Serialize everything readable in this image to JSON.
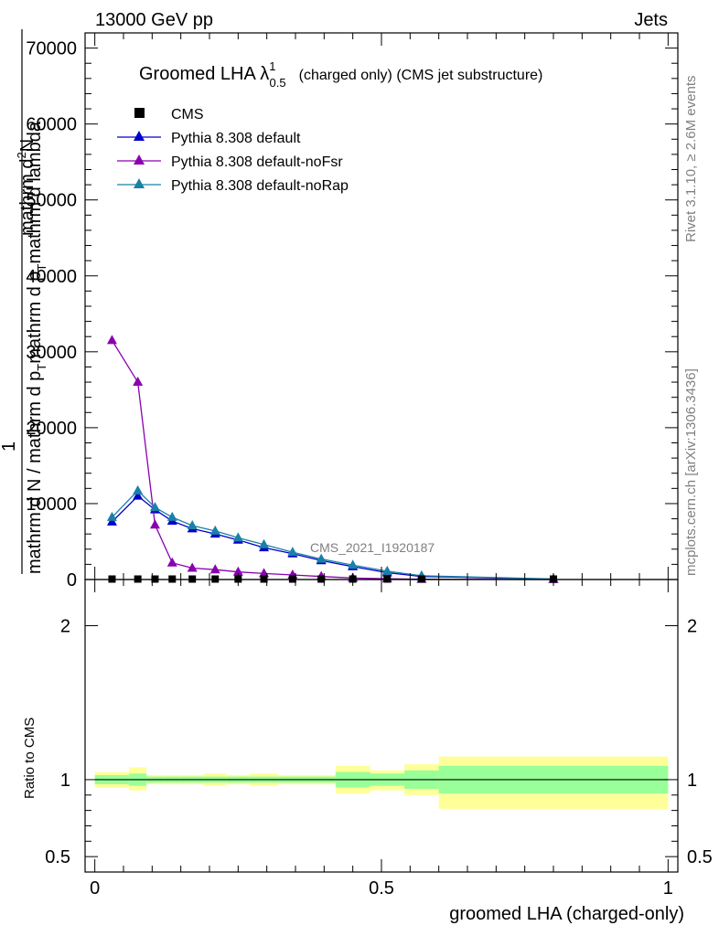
{
  "header": {
    "left": "13000 GeV pp",
    "right": "Jets"
  },
  "side_labels": {
    "rivet": "Rivet 3.1.10, ≥ 2.6M events",
    "mcplots": "mcplots.cern.ch [arXiv:1306.3436]"
  },
  "watermark": "CMS_2021_I1920187",
  "colors": {
    "cms": "#000000",
    "default": "#0000cc",
    "noFsr": "#8a00b0",
    "noRap": "#1a80a8",
    "band_inner": "#99ff99",
    "band_outer": "#ffff99"
  },
  "chart_data": [
    {
      "type": "line",
      "title": "Groomed LHA λ",
      "title_sup": "1",
      "title_sub": "0.5",
      "title_suffix": "(charged only) (CMS jet substructure)",
      "ylabel_numerator": "1        mathrm d",
      "ylabel_numerator_sup": "2",
      "ylabel_numerator_rest": "N",
      "ylabel_line1": "mathrm d N / mathrm d p",
      "ylabel_line1_sub": "T",
      "ylabel_line1_rest": "mathrm d p",
      "ylabel_line1_sub2": "T",
      "ylabel_line1_rest2": "mathrm d lambda",
      "xlim": [
        0,
        1
      ],
      "ylim": [
        0,
        72000
      ],
      "yticks": [
        0,
        10000,
        20000,
        30000,
        40000,
        50000,
        60000,
        70000
      ],
      "ytick_labels": [
        "0",
        "10000",
        "20000",
        "30000",
        "40000",
        "50000",
        "60000",
        "70000"
      ],
      "legend_position": "top-left",
      "series": [
        {
          "name": "CMS",
          "marker": "square",
          "x": [
            0.03,
            0.075,
            0.105,
            0.135,
            0.17,
            0.21,
            0.25,
            0.295,
            0.345,
            0.395,
            0.45,
            0.51,
            0.57,
            0.8
          ],
          "y": [
            60,
            60,
            60,
            60,
            60,
            60,
            60,
            60,
            60,
            60,
            60,
            60,
            60,
            60
          ]
        },
        {
          "name": "Pythia 8.308 default",
          "marker": "triangle",
          "x": [
            0.03,
            0.075,
            0.105,
            0.135,
            0.17,
            0.21,
            0.25,
            0.295,
            0.345,
            0.395,
            0.45,
            0.51,
            0.57,
            0.8
          ],
          "y": [
            7600,
            11000,
            9200,
            7700,
            6700,
            6000,
            5200,
            4200,
            3400,
            2500,
            1700,
            900,
            400,
            60
          ]
        },
        {
          "name": "Pythia 8.308 default-noFsr",
          "marker": "triangle",
          "x": [
            0.03,
            0.075,
            0.105,
            0.135,
            0.17,
            0.21,
            0.25,
            0.295,
            0.345,
            0.395,
            0.45,
            0.51,
            0.57,
            0.8
          ],
          "y": [
            31500,
            26000,
            7200,
            2200,
            1500,
            1300,
            1000,
            800,
            600,
            400,
            200,
            100,
            40,
            10
          ]
        },
        {
          "name": "Pythia 8.308 default-noRap",
          "marker": "triangle",
          "x": [
            0.03,
            0.075,
            0.105,
            0.135,
            0.17,
            0.21,
            0.25,
            0.295,
            0.345,
            0.395,
            0.45,
            0.51,
            0.57,
            0.8
          ],
          "y": [
            8200,
            11700,
            9500,
            8200,
            7100,
            6400,
            5500,
            4600,
            3600,
            2700,
            1900,
            1100,
            500,
            70
          ]
        }
      ]
    },
    {
      "type": "area",
      "ylabel": "Ratio to CMS",
      "xlabel": "groomed LHA (charged-only)",
      "xlim": [
        0,
        1
      ],
      "ylim": [
        0.4,
        2.3
      ],
      "xticks": [
        0,
        0.5,
        1
      ],
      "xtick_labels": [
        "0",
        "0.5",
        "1"
      ],
      "yticks": [
        0.5,
        1,
        2
      ],
      "ytick_labels": [
        "0.5",
        "1",
        "2"
      ],
      "bins": [
        {
          "x0": 0.0,
          "x1": 0.06,
          "inner": [
            0.97,
            1.03
          ],
          "outer": [
            0.95,
            1.05
          ]
        },
        {
          "x0": 0.06,
          "x1": 0.09,
          "inner": [
            0.96,
            1.04
          ],
          "outer": [
            0.93,
            1.08
          ]
        },
        {
          "x0": 0.09,
          "x1": 0.12,
          "inner": [
            0.98,
            1.02
          ],
          "outer": [
            0.97,
            1.03
          ]
        },
        {
          "x0": 0.12,
          "x1": 0.15,
          "inner": [
            0.98,
            1.02
          ],
          "outer": [
            0.97,
            1.03
          ]
        },
        {
          "x0": 0.15,
          "x1": 0.19,
          "inner": [
            0.98,
            1.02
          ],
          "outer": [
            0.97,
            1.03
          ]
        },
        {
          "x0": 0.19,
          "x1": 0.23,
          "inner": [
            0.98,
            1.02
          ],
          "outer": [
            0.96,
            1.04
          ]
        },
        {
          "x0": 0.23,
          "x1": 0.27,
          "inner": [
            0.98,
            1.02
          ],
          "outer": [
            0.97,
            1.03
          ]
        },
        {
          "x0": 0.27,
          "x1": 0.32,
          "inner": [
            0.98,
            1.02
          ],
          "outer": [
            0.96,
            1.04
          ]
        },
        {
          "x0": 0.32,
          "x1": 0.37,
          "inner": [
            0.98,
            1.02
          ],
          "outer": [
            0.97,
            1.03
          ]
        },
        {
          "x0": 0.37,
          "x1": 0.42,
          "inner": [
            0.98,
            1.02
          ],
          "outer": [
            0.97,
            1.03
          ]
        },
        {
          "x0": 0.42,
          "x1": 0.48,
          "inner": [
            0.95,
            1.05
          ],
          "outer": [
            0.91,
            1.09
          ]
        },
        {
          "x0": 0.48,
          "x1": 0.54,
          "inner": [
            0.96,
            1.04
          ],
          "outer": [
            0.93,
            1.06
          ]
        },
        {
          "x0": 0.54,
          "x1": 0.6,
          "inner": [
            0.94,
            1.06
          ],
          "outer": [
            0.9,
            1.1
          ]
        },
        {
          "x0": 0.6,
          "x1": 1.0,
          "inner": [
            0.91,
            1.09
          ],
          "outer": [
            0.81,
            1.15
          ]
        }
      ],
      "reference": 1
    }
  ]
}
